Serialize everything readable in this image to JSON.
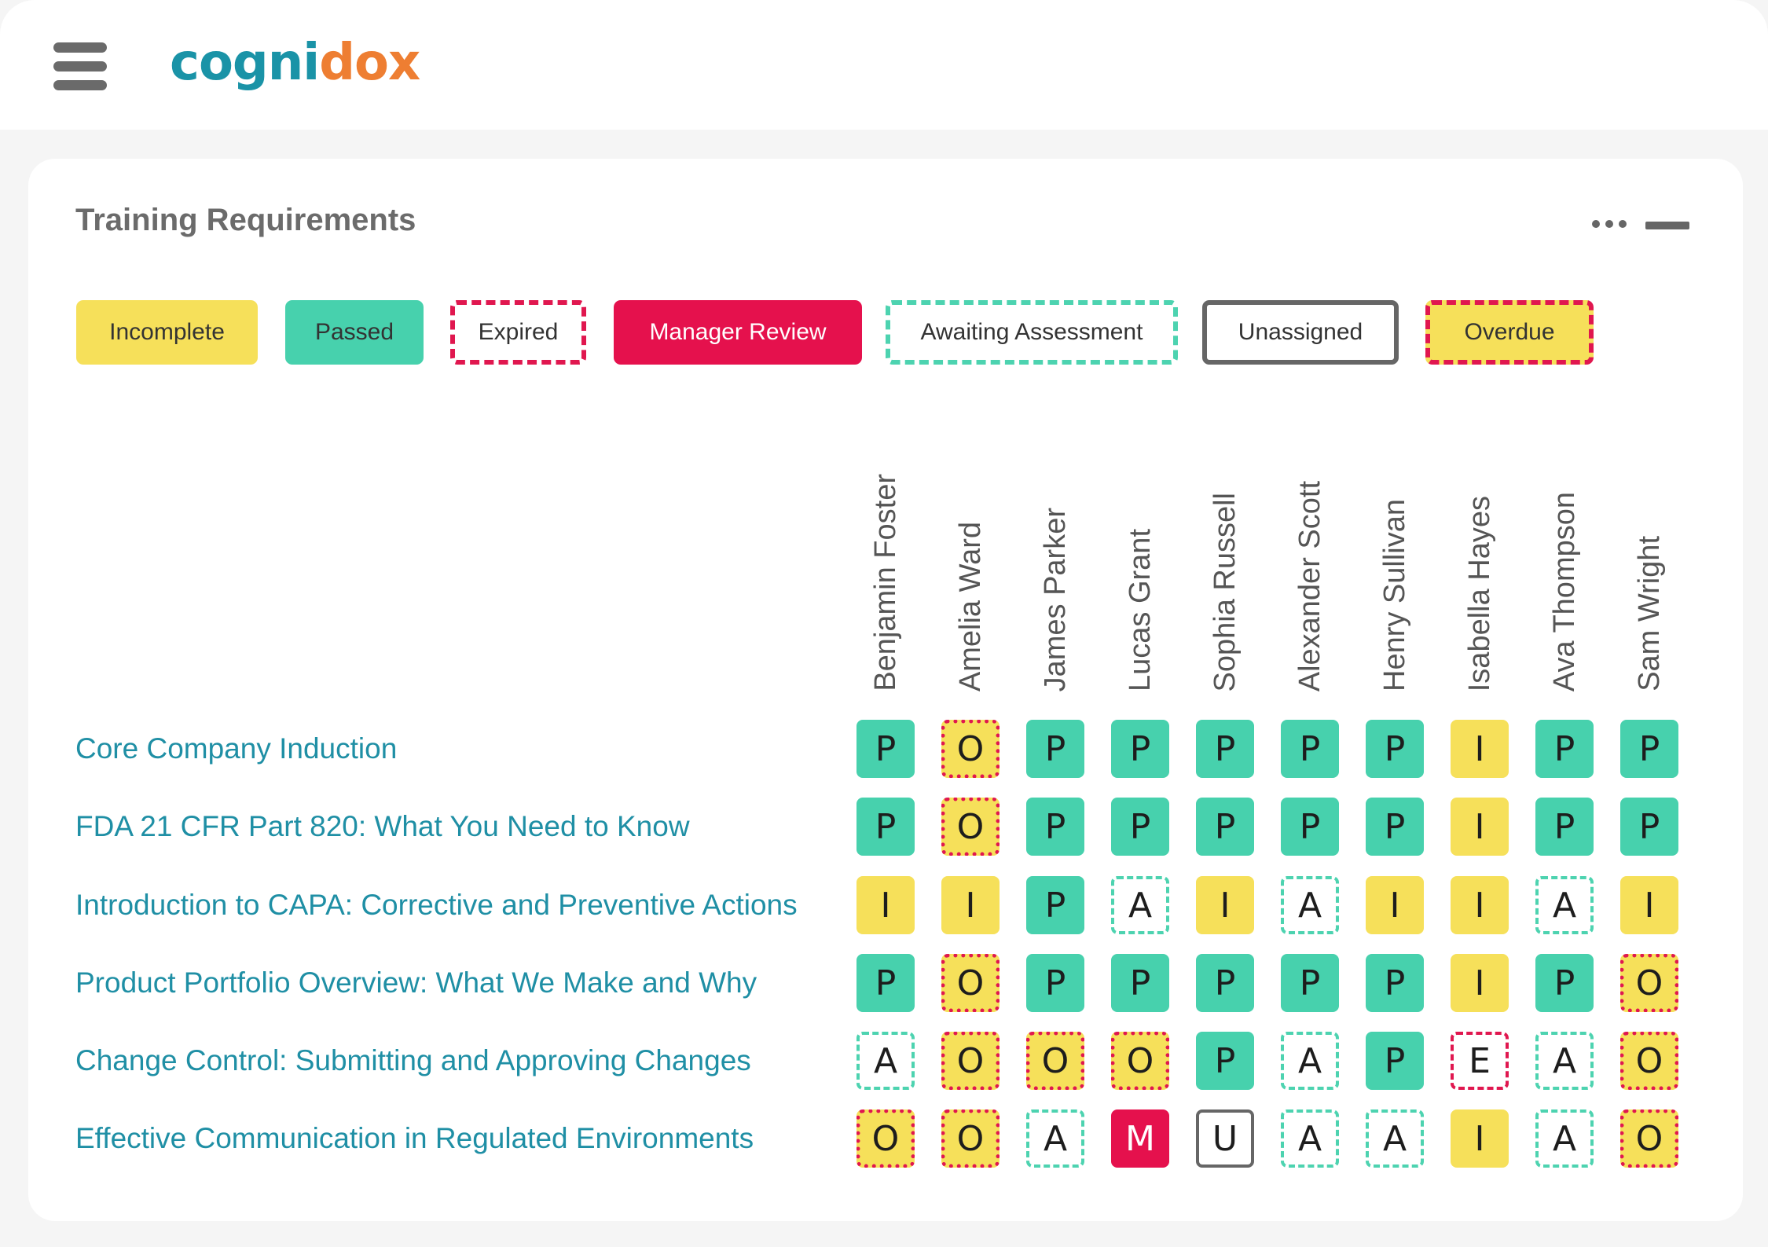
{
  "header": {
    "logo_part1": "cogni",
    "logo_part2": "dox",
    "logo_colors": {
      "part1": "#1a93a7",
      "part2": "#ee7e32"
    },
    "menu_icon": "hamburger-menu-icon"
  },
  "panel": {
    "title": "Training Requirements",
    "actions": {
      "more_icon": "more-horizontal-icon",
      "minimize_icon": "minimize-icon"
    }
  },
  "legend": [
    {
      "key": "I",
      "label": "Incomplete",
      "style": "fill-yellow"
    },
    {
      "key": "P",
      "label": "Passed",
      "style": "fill-teal"
    },
    {
      "key": "E",
      "label": "Expired",
      "style": "dashed-red"
    },
    {
      "key": "M",
      "label": "Manager Review",
      "style": "fill-red"
    },
    {
      "key": "A",
      "label": "Awaiting Assessment",
      "style": "dashed-teal"
    },
    {
      "key": "U",
      "label": "Unassigned",
      "style": "solid-gray"
    },
    {
      "key": "O",
      "label": "Overdue",
      "style": "yellow-dashed-red"
    }
  ],
  "colors": {
    "passed": "#47d1ad",
    "incomplete": "#f6e05a",
    "manager_review": "#e5114d",
    "expired_border": "#e0174f",
    "awaiting_border": "#4dd3b0",
    "unassigned_border": "#666666",
    "course_text": "#1f8fa5"
  },
  "people": [
    "Benjamin Foster",
    "Amelia Ward",
    "James Parker",
    "Lucas Grant",
    "Sophia Russell",
    "Alexander Scott",
    "Henry Sullivan",
    "Isabella Hayes",
    "Ava Thompson",
    "Sam Wright"
  ],
  "courses": [
    {
      "title": "Core Company Induction",
      "statuses": [
        "P",
        "O",
        "P",
        "P",
        "P",
        "P",
        "P",
        "I",
        "P",
        "P"
      ]
    },
    {
      "title": "FDA 21 CFR Part 820: What You Need to Know",
      "statuses": [
        "P",
        "O",
        "P",
        "P",
        "P",
        "P",
        "P",
        "I",
        "P",
        "P"
      ]
    },
    {
      "title": "Introduction to CAPA: Corrective and Preventive Actions",
      "statuses": [
        "I",
        "I",
        "P",
        "A",
        "I",
        "A",
        "I",
        "I",
        "A",
        "I"
      ]
    },
    {
      "title": "Product Portfolio Overview: What We Make and Why",
      "statuses": [
        "P",
        "O",
        "P",
        "P",
        "P",
        "P",
        "P",
        "I",
        "P",
        "O"
      ]
    },
    {
      "title": "Change Control: Submitting and Approving Changes",
      "statuses": [
        "A",
        "O",
        "O",
        "O",
        "P",
        "A",
        "P",
        "E",
        "A",
        "O"
      ]
    },
    {
      "title": "Effective Communication in Regulated Environments",
      "statuses": [
        "O",
        "O",
        "A",
        "M",
        "U",
        "A",
        "A",
        "I",
        "A",
        "O"
      ]
    }
  ]
}
